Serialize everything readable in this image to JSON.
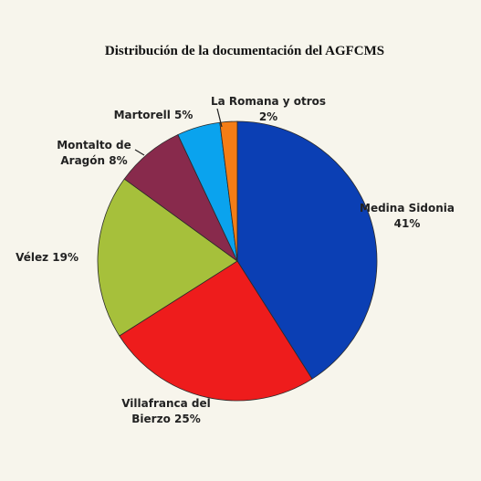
{
  "chart_data": {
    "type": "pie",
    "title": "Distribución de la documentación del AGFCMS",
    "slices": [
      {
        "lines": [
          "Medina Sidonia",
          "41%"
        ],
        "value": 41,
        "color": "#0b3fb4"
      },
      {
        "lines": [
          "Villafranca del",
          "Bierzo 25%"
        ],
        "value": 25,
        "color": "#ee1c1c"
      },
      {
        "lines": [
          "Vélez 19%"
        ],
        "value": 19,
        "color": "#a6c03b"
      },
      {
        "lines": [
          "Montalto de",
          "Aragón 8%"
        ],
        "value": 8,
        "color": "#882a4c"
      },
      {
        "lines": [
          "Martorell 5%"
        ],
        "value": 5,
        "color": "#0aa3ee"
      },
      {
        "lines": [
          "La Romana y otros",
          "2%"
        ],
        "value": 2,
        "color": "#f47d16"
      }
    ]
  }
}
